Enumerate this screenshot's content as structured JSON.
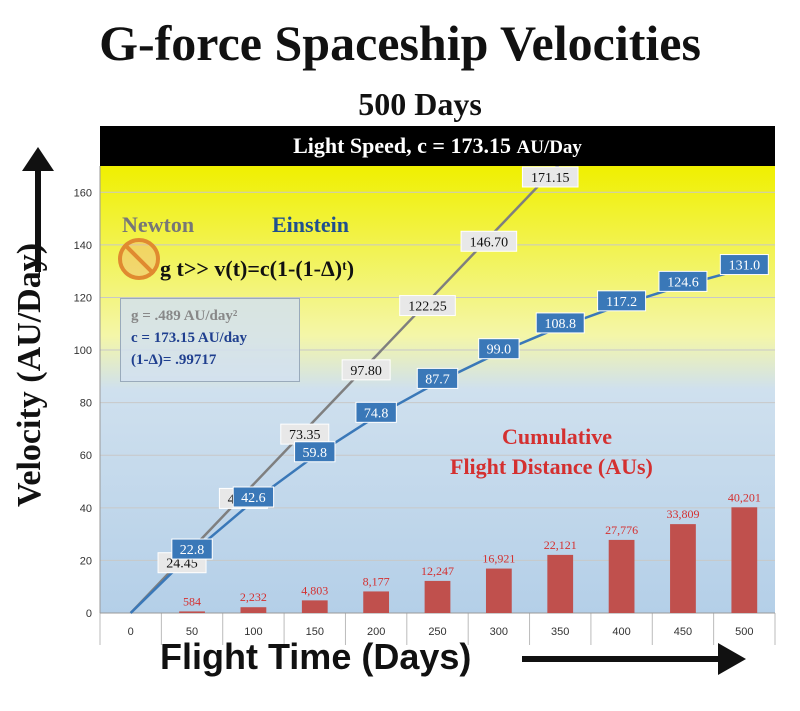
{
  "title": "G-force Spaceship Velocities",
  "subtitle": "500 Days",
  "light_speed": {
    "label": "Light Speed, c = 173.15",
    "unit": "AU/Day"
  },
  "newton_label": "Newton",
  "einstein_label": "Einstein",
  "formula": "v(t)=c(1-(1-Δ)ᵗ)",
  "formula_prefix": "g t>>",
  "params": {
    "g": "g = .489 AU/day²",
    "c": "c = 173.15 AU/day",
    "delta": "(1-Δ)= .99717"
  },
  "cumulative_label_1": "Cumulative",
  "cumulative_label_2": "Flight Distance (AUs)",
  "colors": {
    "newton": "#7f7f7f",
    "einstein": "#3a78b8",
    "bars": "#c0504d",
    "top_zone": "#f0f000",
    "bottom_zone": "#b4cfe8",
    "light_bar": "#000000"
  },
  "chart_data": {
    "type": "line",
    "title": "G-force Spaceship Velocities",
    "subtitle": "500 Days",
    "xlabel": "Flight Time (Days)",
    "ylabel": "Velocity (AU/Day)",
    "x": [
      0,
      50,
      100,
      150,
      200,
      250,
      300,
      350,
      400,
      450,
      500
    ],
    "xlim": [
      0,
      500
    ],
    "ylim": [
      0,
      170
    ],
    "yticks": [
      0,
      20,
      40,
      60,
      80,
      100,
      120,
      140,
      160
    ],
    "xticks": [
      "0",
      "50",
      "100",
      "150",
      "200",
      "250",
      "300",
      "350",
      "400",
      "450",
      "500"
    ],
    "series": [
      {
        "name": "Newton",
        "values": [
          0,
          24.45,
          48.9,
          73.35,
          97.8,
          122.25,
          146.7,
          171.15
        ],
        "x": [
          0,
          50,
          100,
          150,
          200,
          250,
          300,
          350
        ],
        "labels": [
          "24.45",
          "48.90",
          "73.35",
          "97.80",
          "122.25",
          "146.70",
          "171.15"
        ]
      },
      {
        "name": "Einstein",
        "values": [
          0,
          22.8,
          42.6,
          59.8,
          74.8,
          87.7,
          99.0,
          108.8,
          117.2,
          124.6,
          131.0
        ],
        "x": [
          0,
          50,
          100,
          150,
          200,
          250,
          300,
          350,
          400,
          450,
          500
        ],
        "labels": [
          "22.8",
          "42.6",
          "59.8",
          "74.8",
          "87.7",
          "99.0",
          "108.8",
          "117.2",
          "124.6",
          "131.0"
        ]
      }
    ],
    "bars": {
      "name": "Cumulative Flight Distance (AUs)",
      "x": [
        50,
        100,
        150,
        200,
        250,
        300,
        350,
        400,
        450,
        500
      ],
      "heights_on_axis": [
        0.6,
        2.2,
        4.8,
        8.2,
        12.2,
        16.9,
        22.1,
        27.8,
        33.8,
        40.2
      ],
      "labels": [
        "584",
        "2,232",
        "4,803",
        "8,177",
        "12,247",
        "16,921",
        "22,121",
        "27,776",
        "33,809",
        "40,201"
      ]
    },
    "light_speed": 173.15,
    "grid": true
  }
}
